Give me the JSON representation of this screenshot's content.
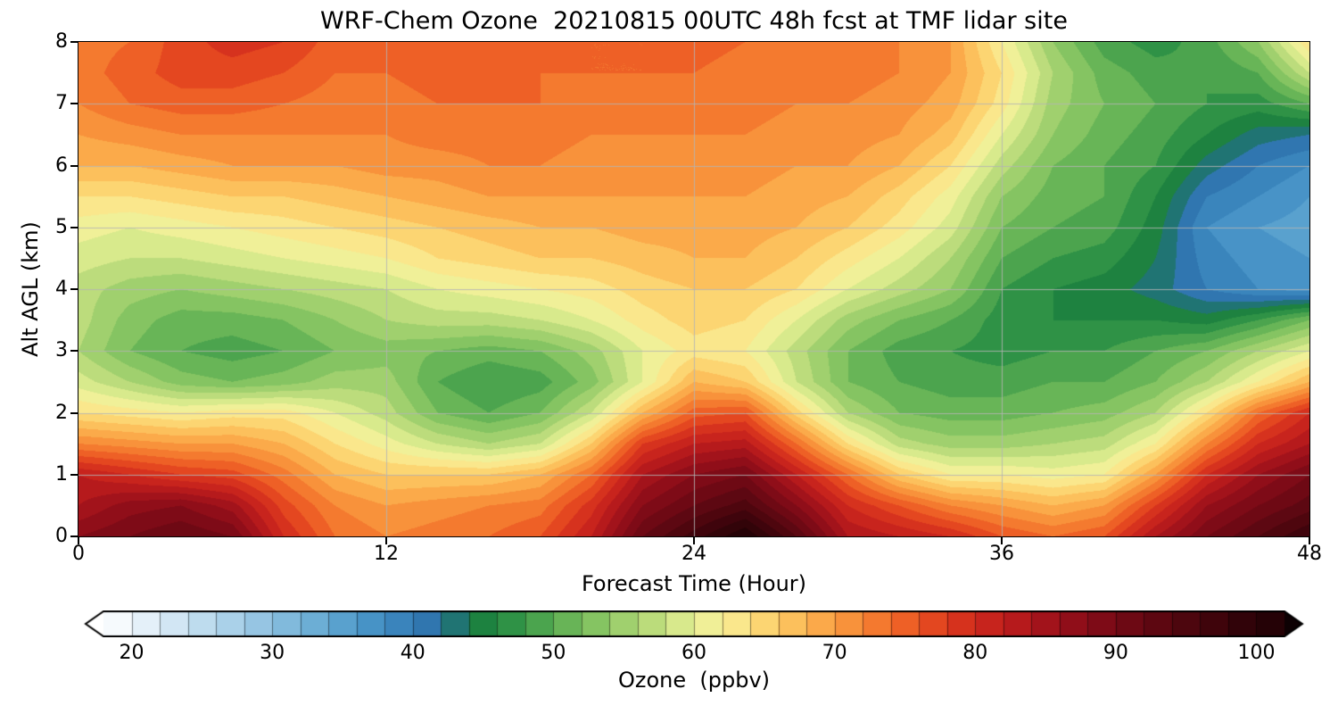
{
  "chart_data": {
    "type": "heatmap",
    "title": "WRF-Chem Ozone  20210815 00UTC 48h fcst at TMF lidar site",
    "xlabel": "Forecast Time (Hour)",
    "ylabel": "Alt AGL (km)",
    "colorbar_label": "Ozone  (ppbv)",
    "xlim": [
      0,
      48
    ],
    "ylim": [
      0,
      8
    ],
    "x_ticks": [
      0,
      12,
      24,
      36,
      48
    ],
    "y_ticks": [
      0,
      1,
      2,
      3,
      4,
      5,
      6,
      7,
      8
    ],
    "colorbar_ticks": [
      20,
      30,
      40,
      50,
      60,
      70,
      80,
      90,
      100
    ],
    "value_range": [
      18,
      102
    ],
    "level_step": 2,
    "grid": true,
    "grid_color": "#b4b4b4",
    "hours": [
      0,
      2,
      4,
      6,
      8,
      10,
      12,
      14,
      16,
      18,
      20,
      22,
      24,
      26,
      28,
      30,
      32,
      34,
      36,
      38,
      40,
      42,
      44,
      46,
      48
    ],
    "altitudes_km": [
      0,
      0.5,
      1,
      1.5,
      2,
      2.5,
      3,
      3.5,
      4,
      4.5,
      5,
      5.5,
      6,
      6.5,
      7,
      7.5,
      8
    ],
    "rows_order": "bottom-to-top",
    "ozone_ppbv": [
      [
        88,
        90,
        92,
        90,
        80,
        74,
        72,
        73,
        74,
        76,
        82,
        92,
        97,
        102,
        94,
        84,
        82,
        80,
        76,
        74,
        76,
        84,
        90,
        94,
        98
      ],
      [
        84,
        87,
        88,
        85,
        77,
        72,
        70,
        71,
        72,
        73,
        79,
        88,
        92,
        95,
        88,
        80,
        76,
        72,
        70,
        68,
        70,
        78,
        86,
        90,
        93
      ],
      [
        82,
        80,
        78,
        77,
        73,
        68,
        66,
        66,
        66,
        68,
        74,
        84,
        88,
        90,
        82,
        74,
        66,
        62,
        62,
        61,
        62,
        70,
        80,
        86,
        90
      ],
      [
        72,
        71,
        70,
        70,
        68,
        64,
        61,
        58,
        56,
        58,
        66,
        78,
        82,
        83,
        74,
        64,
        57,
        55,
        55,
        56,
        57,
        62,
        72,
        80,
        84
      ],
      [
        64,
        63,
        62,
        63,
        63,
        60,
        57,
        52,
        50,
        52,
        58,
        68,
        75,
        76,
        65,
        56,
        52,
        51,
        51,
        52,
        53,
        56,
        64,
        74,
        80
      ],
      [
        59,
        56,
        53,
        52,
        53,
        55,
        55,
        50,
        48,
        49,
        53,
        60,
        68,
        66,
        58,
        52,
        50,
        49,
        49,
        50,
        50,
        52,
        56,
        62,
        68
      ],
      [
        56,
        52,
        50,
        49,
        50,
        52,
        53,
        52,
        51,
        52,
        55,
        60,
        63,
        62,
        57,
        52,
        49,
        48,
        47,
        48,
        48,
        50,
        52,
        56,
        60
      ],
      [
        57,
        53,
        51,
        51,
        52,
        54,
        56,
        57,
        57,
        58,
        60,
        63,
        65,
        64,
        60,
        55,
        52,
        50,
        47,
        46,
        46,
        46,
        45,
        48,
        52
      ],
      [
        57,
        55,
        54,
        55,
        56,
        57,
        58,
        60,
        61,
        62,
        63,
        65,
        66,
        66,
        64,
        60,
        57,
        54,
        48,
        46,
        45,
        43,
        40,
        38,
        37
      ],
      [
        59,
        58,
        58,
        59,
        60,
        61,
        62,
        64,
        65,
        66,
        66,
        67,
        68,
        68,
        66,
        63,
        60,
        56,
        50,
        48,
        47,
        44,
        39,
        37,
        36
      ],
      [
        61,
        60,
        61,
        62,
        63,
        64,
        65,
        66,
        67,
        68,
        68,
        69,
        69,
        69,
        68,
        66,
        63,
        59,
        52,
        50,
        49,
        45,
        38,
        36,
        35
      ],
      [
        64,
        64,
        65,
        66,
        66,
        67,
        68,
        69,
        70,
        70,
        70,
        70,
        70,
        70,
        69,
        68,
        65,
        61,
        54,
        51,
        50,
        46,
        40,
        38,
        36
      ],
      [
        68,
        68,
        69,
        70,
        70,
        70,
        71,
        71,
        72,
        72,
        71,
        71,
        71,
        71,
        70,
        70,
        68,
        64,
        57,
        52,
        50,
        48,
        43,
        40,
        38
      ],
      [
        70,
        71,
        72,
        72,
        72,
        72,
        72,
        73,
        73,
        73,
        72,
        72,
        72,
        72,
        71,
        71,
        70,
        67,
        60,
        54,
        51,
        49,
        46,
        43,
        42
      ],
      [
        72,
        74,
        75,
        75,
        74,
        73,
        73,
        74,
        74,
        74,
        73,
        73,
        73,
        73,
        72,
        72,
        71,
        69,
        63,
        55,
        52,
        50,
        48,
        47,
        50
      ],
      [
        73,
        75,
        77,
        77,
        76,
        74,
        74,
        75,
        75,
        74,
        74,
        74,
        74,
        73,
        73,
        73,
        72,
        70,
        64,
        56,
        51,
        49,
        48,
        50,
        58
      ],
      [
        73,
        74,
        77,
        79,
        78,
        75,
        74,
        75,
        76,
        75,
        74,
        74,
        75,
        74,
        73,
        73,
        72,
        70,
        62,
        54,
        49,
        47,
        49,
        54,
        64
      ]
    ],
    "colormap": [
      [
        18,
        "#ffffff"
      ],
      [
        22,
        "#dcecf7"
      ],
      [
        26,
        "#b5d7ec"
      ],
      [
        30,
        "#8cc0e0"
      ],
      [
        34,
        "#62a8d2"
      ],
      [
        38,
        "#3f8cc3"
      ],
      [
        42,
        "#2b6fa9"
      ],
      [
        44,
        "#157a3d"
      ],
      [
        47,
        "#2f9246"
      ],
      [
        50,
        "#5aad52"
      ],
      [
        53,
        "#85c462"
      ],
      [
        56,
        "#aed674"
      ],
      [
        58,
        "#c9e383"
      ],
      [
        60,
        "#e8f095"
      ],
      [
        62,
        "#f9ef9a"
      ],
      [
        64,
        "#fcdf7e"
      ],
      [
        66,
        "#fdcb66"
      ],
      [
        68,
        "#fcb553"
      ],
      [
        70,
        "#fa9e42"
      ],
      [
        72,
        "#f78634"
      ],
      [
        74,
        "#f26d2a"
      ],
      [
        76,
        "#ea5322"
      ],
      [
        78,
        "#dd3b1e"
      ],
      [
        80,
        "#cf2a1d"
      ],
      [
        82,
        "#c01f1d"
      ],
      [
        84,
        "#ac161c"
      ],
      [
        86,
        "#99101a"
      ],
      [
        88,
        "#870c18"
      ],
      [
        90,
        "#760a16"
      ],
      [
        92,
        "#650813"
      ],
      [
        94,
        "#550710"
      ],
      [
        96,
        "#46050d"
      ],
      [
        98,
        "#38040a"
      ],
      [
        100,
        "#2b0308"
      ],
      [
        102,
        "#1f0205"
      ]
    ],
    "colormap_under": "#ffffff",
    "colormap_over": "#0d0103"
  }
}
